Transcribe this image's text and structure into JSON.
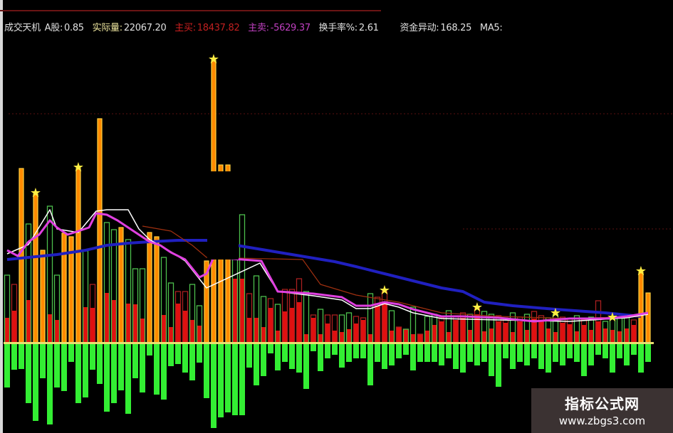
{
  "header": {
    "indicator_name": "成交天机",
    "a_label": "A股:",
    "a_value": "0.85",
    "actual_label": "实际量:",
    "actual_value": "22067.20",
    "buy_label": "主买:",
    "buy_value": "18437.82",
    "sell_label": "主卖:",
    "sell_value": "-5629.37",
    "turnover_label": "换手率%:",
    "turnover_value": "2.61",
    "fund_label": "资金异动:",
    "fund_value": "168.25",
    "ma_label": "MA5:"
  },
  "watermark": {
    "title": "指标公式网",
    "url": "www.zbgs3.com"
  },
  "colors": {
    "background": "#000000",
    "orange_bar": "#ff8a00",
    "orange_outline": "#ffd040",
    "buy_fill": "#e01010",
    "green_outline": "#4cbf4c",
    "red_outline": "#a82020",
    "sell_bar": "#33ee33",
    "zero_line": "#e8e070",
    "magenta_line": "#e040e0",
    "white_line": "#ffffff",
    "blue_line": "#2020c0",
    "brown_line": "#a03010",
    "star": "#ffee44"
  },
  "chart_data": {
    "type": "bar",
    "ylim": [
      -130,
      400
    ],
    "grid": false,
    "bar_kind": [
      "g",
      "r",
      "o",
      "g",
      "o",
      "o",
      "g",
      "g",
      "o",
      "o",
      "o",
      "g",
      "r",
      "o",
      "g",
      "g",
      "o",
      "g",
      "g",
      "g",
      "o",
      "o",
      "g",
      "g",
      "r",
      "r",
      "g",
      "g",
      "o",
      "o",
      "o",
      "o",
      "g",
      "g",
      "r",
      "g",
      "g",
      "r",
      "g",
      "r",
      "r",
      "r",
      "g",
      "r",
      "g",
      "r",
      "r",
      "g",
      "g",
      "r",
      "r",
      "g",
      "r",
      "r",
      "g",
      "r",
      "g",
      "g",
      "r",
      "g",
      "g",
      "r",
      "g",
      "r",
      "r",
      "g",
      "r",
      "g",
      "g",
      "r",
      "r",
      "g",
      "r",
      "g",
      "r",
      "r",
      "g",
      "g",
      "r",
      "r",
      "g",
      "r",
      "g",
      "r",
      "g",
      "g",
      "g",
      "g",
      "r",
      "o",
      "o"
    ],
    "total": [
      95,
      82,
      245,
      167,
      209,
      130,
      192,
      95,
      154,
      149,
      245,
      129,
      82,
      315,
      169,
      159,
      162,
      145,
      104,
      104,
      155,
      149,
      120,
      84,
      72,
      72,
      82,
      52,
      115,
      397,
      250,
      250,
      180,
      180,
      69,
      94,
      65,
      62,
      54,
      75,
      75,
      90,
      72,
      39,
      47,
      39,
      39,
      39,
      42,
      37,
      35,
      69,
      64,
      72,
      45,
      22,
      19,
      50,
      12,
      37,
      40,
      35,
      45,
      38,
      42,
      40,
      48,
      44,
      40,
      38,
      35,
      42,
      36,
      40,
      44,
      38,
      35,
      40,
      36,
      34,
      38,
      32,
      36,
      59,
      30,
      34,
      36,
      38,
      32,
      99,
      70
    ],
    "main_buy": [
      35,
      45,
      245,
      60,
      209,
      130,
      40,
      32,
      154,
      149,
      245,
      50,
      49,
      315,
      70,
      60,
      162,
      55,
      54,
      34,
      155,
      149,
      39,
      22,
      55,
      45,
      32,
      24,
      115,
      397,
      250,
      250,
      90,
      90,
      35,
      35,
      22,
      49,
      17,
      44,
      49,
      57,
      12,
      35,
      12,
      27,
      17,
      15,
      19,
      27,
      32,
      12,
      52,
      57,
      17,
      22,
      19,
      12,
      12,
      17,
      25,
      30,
      15,
      32,
      35,
      18,
      40,
      16,
      20,
      30,
      28,
      15,
      30,
      18,
      34,
      30,
      20,
      15,
      28,
      26,
      16,
      25,
      18,
      30,
      20,
      18,
      16,
      20,
      25,
      99,
      70
    ],
    "main_sell": [
      -61,
      -36,
      -35,
      -83,
      -108,
      -48,
      -113,
      -61,
      -66,
      -25,
      -83,
      -75,
      -36,
      -56,
      -95,
      -83,
      -65,
      -98,
      -48,
      -68,
      -16,
      -71,
      -78,
      -31,
      -28,
      -40,
      -51,
      -26,
      -76,
      -118,
      -103,
      -96,
      -100,
      -100,
      -33,
      -58,
      -45,
      -13,
      -37,
      -25,
      -35,
      -40,
      -63,
      -10,
      -38,
      -20,
      -15,
      -33,
      -25,
      -20,
      -20,
      -58,
      -25,
      -35,
      -30,
      -20,
      -15,
      -37,
      -25,
      -25,
      -25,
      -30,
      -20,
      -35,
      -40,
      -25,
      -30,
      -25,
      -45,
      -60,
      -20,
      -35,
      -25,
      -30,
      -20,
      -35,
      -40,
      -25,
      -30,
      -20,
      -25,
      -45,
      -30,
      -15,
      -20,
      -40,
      -20,
      -30,
      -15,
      -40,
      -25
    ],
    "star_bars": [
      4,
      10,
      29,
      53,
      66,
      77,
      85,
      89
    ],
    "lines": [
      {
        "color": "#2020c0",
        "points": [
          [
            0,
            117
          ],
          [
            3,
            120
          ],
          [
            7,
            124
          ],
          [
            11,
            130
          ],
          [
            14,
            137
          ],
          [
            17,
            140
          ],
          [
            20,
            142
          ],
          [
            24,
            144
          ],
          [
            28,
            144
          ],
          [
            46,
            114
          ],
          [
            49,
            107
          ],
          [
            53,
            97
          ],
          [
            57,
            87
          ],
          [
            61,
            77
          ],
          [
            64,
            72
          ],
          [
            67,
            57
          ],
          [
            71,
            52
          ],
          [
            77,
            47
          ],
          [
            84,
            42
          ],
          [
            89,
            37
          ]
        ]
      },
      {
        "color": "#a03010",
        "points": [
          [
            19,
            164
          ],
          [
            23,
            157
          ],
          [
            26,
            137
          ],
          [
            28,
            120
          ],
          [
            41.5,
            117
          ],
          [
            44,
            82
          ],
          [
            49,
            67
          ],
          [
            55,
            57
          ],
          [
            61,
            42
          ],
          [
            69,
            37
          ],
          [
            79,
            34
          ],
          [
            89,
            37
          ]
        ]
      },
      {
        "color": "#ffffff",
        "points": [
          [
            0,
            125
          ],
          [
            3,
            138
          ],
          [
            6,
            187
          ],
          [
            7,
            160
          ],
          [
            10,
            155
          ],
          [
            12.5,
            185
          ],
          [
            14,
            187
          ],
          [
            17,
            187
          ],
          [
            18.5,
            160
          ],
          [
            20,
            145
          ],
          [
            23,
            128
          ],
          [
            25,
            115
          ],
          [
            28,
            77
          ],
          [
            35.5,
            112
          ],
          [
            38,
            72
          ],
          [
            43,
            66
          ],
          [
            47,
            60
          ],
          [
            49,
            48
          ],
          [
            51,
            48
          ],
          [
            53,
            55
          ],
          [
            55,
            50
          ],
          [
            57,
            42
          ],
          [
            61,
            34
          ],
          [
            69,
            32
          ],
          [
            79,
            30
          ],
          [
            87,
            35
          ],
          [
            90,
            40
          ]
        ]
      },
      {
        "color": "#e040e0",
        "points": [
          [
            0,
            130
          ],
          [
            1.5,
            122
          ],
          [
            3,
            142
          ],
          [
            4.5,
            152
          ],
          [
            6,
            172
          ],
          [
            7,
            162
          ],
          [
            8.5,
            152
          ],
          [
            10,
            157
          ],
          [
            11.5,
            162
          ],
          [
            12.5,
            182
          ],
          [
            14,
            180
          ],
          [
            15.5,
            172
          ],
          [
            17,
            162
          ],
          [
            18.5,
            152
          ],
          [
            20,
            142
          ],
          [
            21.5,
            137
          ],
          [
            23,
            127
          ],
          [
            25,
            117
          ],
          [
            27,
            92
          ],
          [
            28,
            97
          ],
          [
            29,
            120
          ],
          [
            35.7,
            115
          ],
          [
            38,
            72
          ],
          [
            43,
            69
          ],
          [
            47,
            64
          ],
          [
            49,
            52
          ],
          [
            51,
            52
          ],
          [
            53,
            57
          ],
          [
            55,
            54
          ],
          [
            57,
            47
          ],
          [
            59,
            42
          ],
          [
            61,
            37
          ],
          [
            64,
            37
          ],
          [
            69,
            35
          ],
          [
            74,
            30
          ],
          [
            79,
            34
          ],
          [
            84,
            34
          ],
          [
            87,
            37
          ],
          [
            90,
            42
          ]
        ]
      }
    ]
  }
}
